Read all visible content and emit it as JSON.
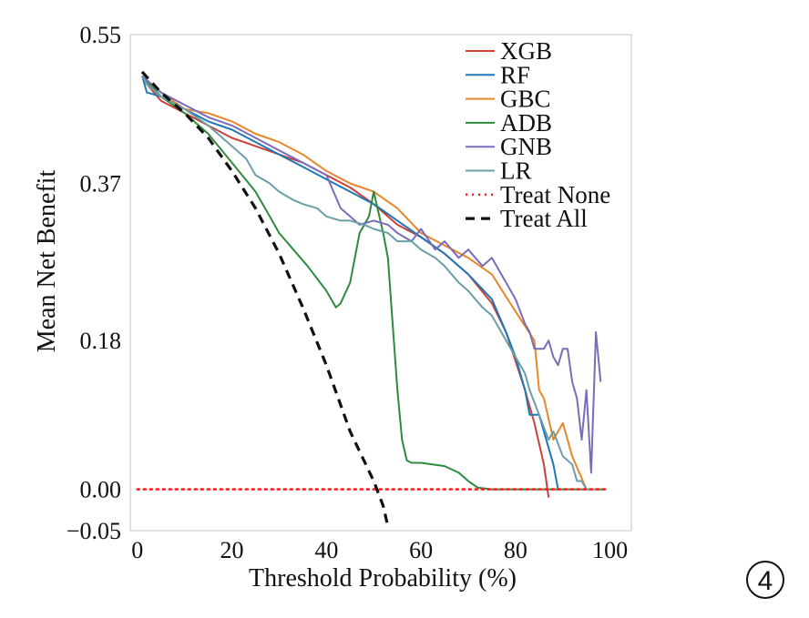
{
  "chart_data": {
    "type": "line",
    "xlabel": "Threshold Probability (%)",
    "ylabel": "Mean Net Benefit",
    "xlim": [
      -1.5,
      104.5
    ],
    "ylim": [
      -0.05,
      0.55
    ],
    "xticks": [
      0,
      20,
      40,
      60,
      80,
      100
    ],
    "yticks": [
      0.55,
      0.37,
      0.18,
      0.0,
      -0.05
    ],
    "ytick_labels": [
      "0.55",
      "0.37",
      "0.18",
      "0.00",
      "−0.05"
    ],
    "grid": false,
    "legend_position": "top-right",
    "series": [
      {
        "name": "XGB",
        "color": "#c9423a",
        "style": "solid",
        "x": [
          1,
          2,
          5,
          10,
          15,
          20,
          25,
          30,
          35,
          40,
          45,
          50,
          55,
          60,
          65,
          70,
          75,
          78,
          80,
          82,
          84,
          86,
          87
        ],
        "y": [
          0.5,
          0.49,
          0.47,
          0.455,
          0.44,
          0.425,
          0.415,
          0.405,
          0.395,
          0.38,
          0.365,
          0.345,
          0.32,
          0.305,
          0.285,
          0.26,
          0.225,
          0.19,
          0.155,
          0.12,
          0.08,
          0.03,
          -0.01
        ]
      },
      {
        "name": "RF",
        "color": "#1f77b4",
        "style": "solid",
        "x": [
          1,
          2,
          5,
          10,
          15,
          20,
          25,
          30,
          35,
          40,
          45,
          50,
          55,
          60,
          65,
          70,
          75,
          78,
          80,
          82,
          83,
          85,
          86,
          88,
          89
        ],
        "y": [
          0.5,
          0.48,
          0.475,
          0.46,
          0.445,
          0.435,
          0.42,
          0.405,
          0.39,
          0.375,
          0.36,
          0.345,
          0.325,
          0.305,
          0.285,
          0.26,
          0.23,
          0.19,
          0.16,
          0.12,
          0.09,
          0.09,
          0.07,
          0.03,
          0.0
        ]
      },
      {
        "name": "GBC",
        "color": "#e8862a",
        "style": "solid",
        "x": [
          1,
          2,
          5,
          10,
          15,
          20,
          25,
          30,
          35,
          40,
          45,
          50,
          55,
          60,
          65,
          70,
          75,
          80,
          84,
          85,
          86,
          88,
          90,
          92,
          95
        ],
        "y": [
          0.5,
          0.495,
          0.48,
          0.46,
          0.455,
          0.445,
          0.43,
          0.42,
          0.405,
          0.385,
          0.37,
          0.36,
          0.34,
          0.31,
          0.295,
          0.28,
          0.26,
          0.215,
          0.18,
          0.12,
          0.11,
          0.06,
          0.08,
          0.04,
          0.0
        ]
      },
      {
        "name": "ADB",
        "color": "#2e8b3e",
        "style": "solid",
        "x": [
          1,
          5,
          10,
          15,
          20,
          25,
          28,
          30,
          33,
          36,
          38,
          40,
          42,
          43,
          45,
          47,
          49,
          50,
          51,
          52,
          53,
          54,
          55,
          56,
          57,
          58,
          60,
          65,
          68,
          70,
          72,
          75,
          80,
          85,
          90,
          95,
          99
        ],
        "y": [
          0.5,
          0.475,
          0.455,
          0.43,
          0.395,
          0.36,
          0.33,
          0.31,
          0.29,
          0.27,
          0.255,
          0.24,
          0.22,
          0.225,
          0.25,
          0.31,
          0.33,
          0.36,
          0.335,
          0.31,
          0.28,
          0.2,
          0.12,
          0.06,
          0.035,
          0.032,
          0.032,
          0.028,
          0.02,
          0.01,
          0.002,
          0.0,
          0.0,
          0.0,
          0.0,
          0.0,
          0.0
        ]
      },
      {
        "name": "GNB",
        "color": "#7b6bbb",
        "style": "solid",
        "x": [
          1,
          2,
          5,
          10,
          15,
          20,
          25,
          30,
          35,
          40,
          43,
          45,
          47,
          50,
          53,
          55,
          58,
          60,
          63,
          65,
          68,
          70,
          73,
          75,
          78,
          80,
          82,
          83,
          84,
          85,
          86,
          87,
          88,
          89,
          90,
          91,
          92,
          93,
          94,
          95,
          96,
          97,
          98
        ],
        "y": [
          0.5,
          0.495,
          0.48,
          0.465,
          0.45,
          0.44,
          0.425,
          0.41,
          0.395,
          0.38,
          0.34,
          0.33,
          0.32,
          0.325,
          0.32,
          0.31,
          0.3,
          0.315,
          0.29,
          0.3,
          0.28,
          0.29,
          0.27,
          0.28,
          0.25,
          0.23,
          0.2,
          0.19,
          0.17,
          0.17,
          0.17,
          0.18,
          0.16,
          0.15,
          0.17,
          0.17,
          0.13,
          0.11,
          0.06,
          0.12,
          0.02,
          0.19,
          0.13
        ]
      },
      {
        "name": "LR",
        "color": "#6c9ea7",
        "style": "solid",
        "x": [
          1,
          2,
          5,
          10,
          15,
          20,
          23,
          25,
          28,
          30,
          33,
          35,
          38,
          40,
          43,
          45,
          48,
          50,
          53,
          55,
          58,
          60,
          63,
          65,
          68,
          70,
          73,
          75,
          78,
          80,
          82,
          83,
          85,
          87,
          88,
          90,
          92,
          93,
          94,
          95,
          97
        ],
        "y": [
          0.5,
          0.49,
          0.475,
          0.46,
          0.44,
          0.415,
          0.4,
          0.38,
          0.37,
          0.36,
          0.35,
          0.345,
          0.34,
          0.33,
          0.325,
          0.325,
          0.32,
          0.315,
          0.31,
          0.3,
          0.3,
          0.29,
          0.28,
          0.27,
          0.25,
          0.24,
          0.22,
          0.21,
          0.18,
          0.16,
          0.14,
          0.12,
          0.09,
          0.06,
          0.07,
          0.04,
          0.03,
          0.01,
          0.01,
          0.0,
          0.0
        ]
      },
      {
        "name": "Treat None",
        "color": "#ff2020",
        "style": "dotted",
        "x": [
          0,
          99
        ],
        "y": [
          0.0,
          0.0
        ]
      },
      {
        "name": "Treat All",
        "color": "#111111",
        "style": "dashed",
        "x": [
          1,
          5,
          10,
          15,
          20,
          25,
          30,
          35,
          40,
          45,
          50,
          52,
          53
        ],
        "y": [
          0.505,
          0.48,
          0.455,
          0.425,
          0.385,
          0.34,
          0.285,
          0.22,
          0.15,
          0.07,
          0.01,
          -0.02,
          -0.045
        ]
      }
    ]
  },
  "badge": {
    "label": "4"
  }
}
